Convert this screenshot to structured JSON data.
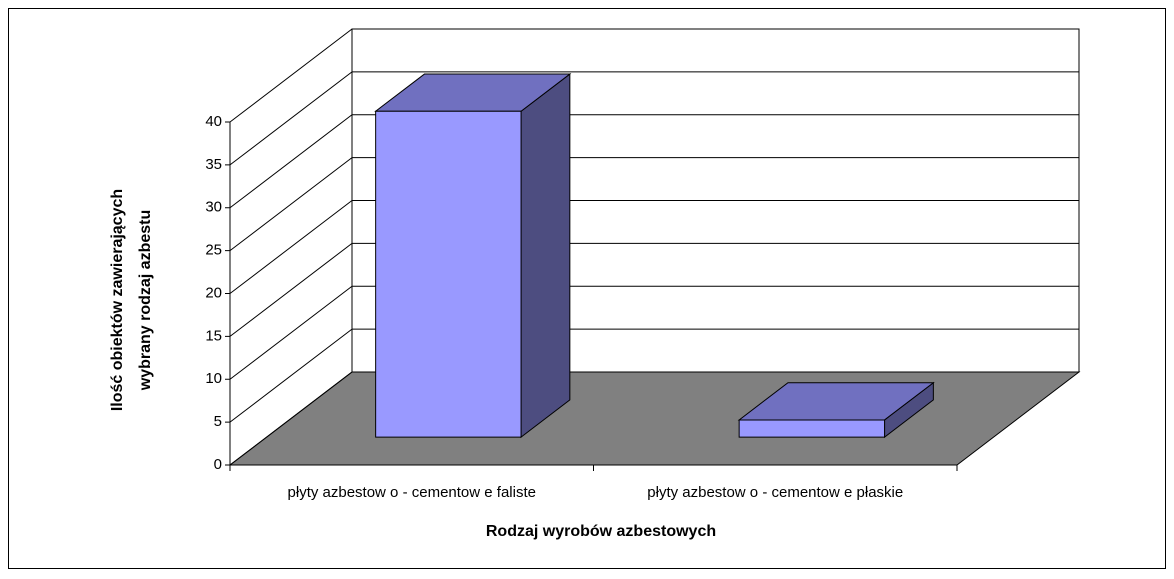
{
  "chart_data": {
    "type": "bar3d",
    "categories": [
      "płyty azbestow o - cementow e faliste",
      "płyty azbestow o - cementow e płaskie"
    ],
    "values": [
      38,
      2
    ],
    "color": "#9999ff",
    "xlabel": "Rodzaj wyrobów azbestowych",
    "ylabel": [
      "Ilość obiektów zawierających",
      "wybrany rodzaj azbestu"
    ],
    "ylim": [
      0,
      40
    ],
    "yticks": [
      0,
      5,
      10,
      15,
      20,
      25,
      30,
      35,
      40
    ],
    "grid": true
  }
}
